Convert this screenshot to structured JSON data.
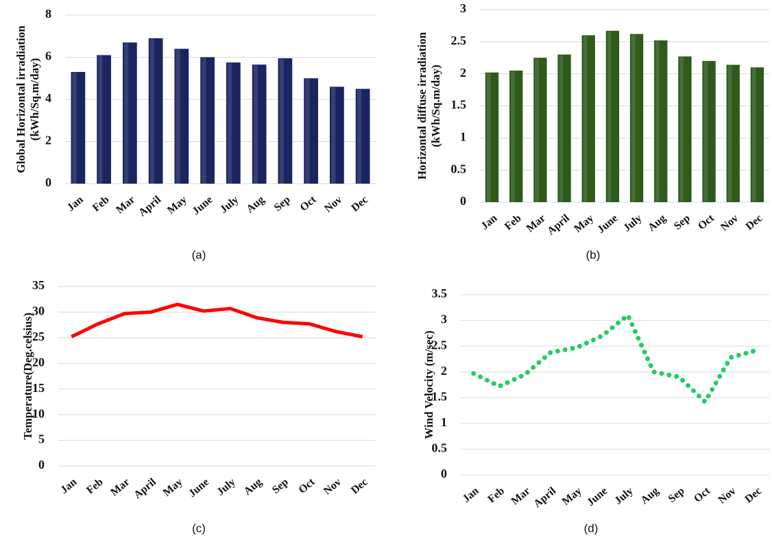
{
  "chart_data": [
    {
      "type": "bar",
      "caption": "(a)",
      "ylabel": [
        "Global Horizontal irradiation",
        "(kWh/Sq.m/day)"
      ],
      "categories": [
        "Jan",
        "Feb",
        "Mar",
        "April",
        "May",
        "June",
        "July",
        "Aug",
        "Sep",
        "Oct",
        "Nov",
        "Dec"
      ],
      "values": [
        5.3,
        6.1,
        6.7,
        6.9,
        6.4,
        6.0,
        5.75,
        5.65,
        5.95,
        5.0,
        4.6,
        4.5
      ],
      "color": "#1a2560",
      "ylim": [
        0,
        8
      ],
      "yticks": [
        0,
        2,
        4,
        6,
        8
      ],
      "grid": true
    },
    {
      "type": "bar",
      "caption": "(b)",
      "ylabel": [
        "Horizontal diffuse irradiation",
        "(kWh/Sq.m/day)"
      ],
      "categories": [
        "Jan",
        "Feb",
        "Mar",
        "April",
        "May",
        "June",
        "July",
        "Aug",
        "Sep",
        "Oct",
        "Nov",
        "Dec"
      ],
      "values": [
        2.02,
        2.05,
        2.25,
        2.3,
        2.6,
        2.67,
        2.62,
        2.52,
        2.27,
        2.2,
        2.14,
        2.1
      ],
      "color": "#2e5a1c",
      "ylim": [
        0,
        3
      ],
      "yticks": [
        0,
        0.5,
        1,
        1.5,
        2,
        2.5,
        3
      ],
      "grid": true
    },
    {
      "type": "line",
      "caption": "(c)",
      "ylabel": [
        "Temperature(Deg.celsius)"
      ],
      "categories": [
        "Jan",
        "Feb",
        "Mar",
        "April",
        "May",
        "June",
        "July",
        "Aug",
        "Sep",
        "Oct",
        "Nov",
        "Dec"
      ],
      "values": [
        25.2,
        27.7,
        29.7,
        30,
        31.5,
        30.2,
        30.7,
        28.9,
        28,
        27.7,
        26.2,
        25.2
      ],
      "color": "#ff0000",
      "line_style": "solid",
      "ylim": [
        0,
        35
      ],
      "yticks": [
        0,
        5,
        10,
        15,
        20,
        25,
        30,
        35
      ],
      "grid": true
    },
    {
      "type": "line",
      "caption": "(d)",
      "ylabel": [
        "Wind Velocity (m/sec)"
      ],
      "categories": [
        "Jan",
        "Feb",
        "Mar",
        "April",
        "May",
        "June",
        "July",
        "Aug",
        "Sep",
        "Oct",
        "Nov",
        "Dec"
      ],
      "values": [
        1.97,
        1.72,
        1.95,
        2.38,
        2.47,
        2.7,
        3.1,
        2.0,
        1.9,
        1.42,
        2.28,
        2.42
      ],
      "color": "#22cc66",
      "line_style": "dotted",
      "ylim": [
        0,
        3.5
      ],
      "yticks": [
        0,
        0.5,
        1,
        1.5,
        2,
        2.5,
        3,
        3.5
      ],
      "grid": true
    }
  ]
}
